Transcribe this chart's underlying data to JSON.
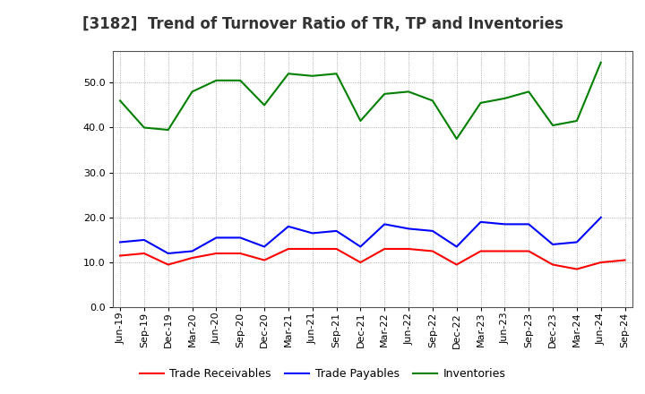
{
  "title": "[3182]  Trend of Turnover Ratio of TR, TP and Inventories",
  "x_labels": [
    "Jun-19",
    "Sep-19",
    "Dec-19",
    "Mar-20",
    "Jun-20",
    "Sep-20",
    "Dec-20",
    "Mar-21",
    "Jun-21",
    "Sep-21",
    "Dec-21",
    "Mar-22",
    "Jun-22",
    "Sep-22",
    "Dec-22",
    "Mar-23",
    "Jun-23",
    "Sep-23",
    "Dec-23",
    "Mar-24",
    "Jun-24",
    "Sep-24"
  ],
  "trade_receivables": [
    11.5,
    12.0,
    9.5,
    11.0,
    12.0,
    12.0,
    10.5,
    13.0,
    13.0,
    13.0,
    10.0,
    13.0,
    13.0,
    12.5,
    9.5,
    12.5,
    12.5,
    12.5,
    9.5,
    8.5,
    10.0,
    10.5
  ],
  "trade_payables": [
    14.5,
    15.0,
    12.0,
    12.5,
    15.5,
    15.5,
    13.5,
    18.0,
    16.5,
    17.0,
    13.5,
    18.5,
    17.5,
    17.0,
    13.5,
    19.0,
    18.5,
    18.5,
    14.0,
    14.5,
    20.0,
    null
  ],
  "inventories": [
    46.0,
    40.0,
    39.5,
    48.0,
    50.5,
    50.5,
    45.0,
    52.0,
    51.5,
    52.0,
    41.5,
    47.5,
    48.0,
    46.0,
    37.5,
    45.5,
    46.5,
    48.0,
    40.5,
    41.5,
    54.5,
    null
  ],
  "ylim": [
    0,
    57
  ],
  "yticks": [
    0.0,
    10.0,
    20.0,
    30.0,
    40.0,
    50.0
  ],
  "color_tr": "#ff0000",
  "color_tp": "#0000ff",
  "color_inv": "#008000",
  "legend_labels": [
    "Trade Receivables",
    "Trade Payables",
    "Inventories"
  ],
  "bg_color": "#ffffff",
  "grid_color": "#aaaaaa",
  "title_fontsize": 12,
  "axis_fontsize": 8
}
